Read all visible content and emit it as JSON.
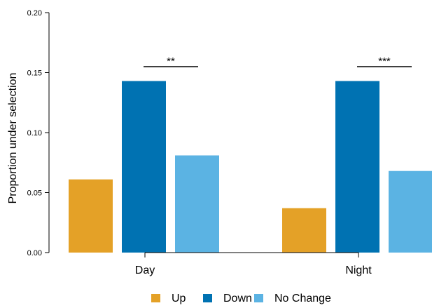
{
  "chart_data": {
    "type": "bar",
    "categories": [
      "Day",
      "Night"
    ],
    "series": [
      {
        "name": "Up",
        "values": [
          0.061,
          0.037
        ],
        "color": "#E4A127"
      },
      {
        "name": "Down",
        "values": [
          0.143,
          0.143
        ],
        "color": "#0072B2"
      },
      {
        "name": "No Change",
        "values": [
          0.081,
          0.068
        ],
        "color": "#5BB3E3"
      }
    ],
    "ylabel": "Proportion under selection",
    "xlabel": "",
    "ylim": [
      0,
      0.2
    ],
    "yticks": [
      "0.00",
      "0.05",
      "0.10",
      "0.15",
      "0.20"
    ],
    "grid": false,
    "legend_position": "bottom",
    "annotations": [
      {
        "category": "Day",
        "label": "**",
        "level": 0.155
      },
      {
        "category": "Night",
        "label": "***",
        "level": 0.155
      }
    ]
  }
}
